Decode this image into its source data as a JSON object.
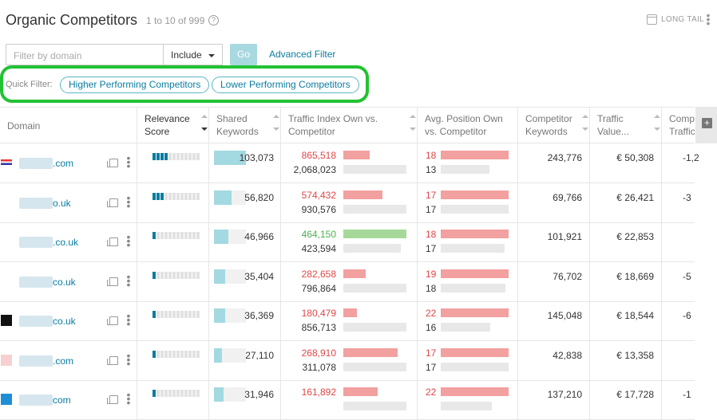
{
  "header": {
    "title": "Organic Competitors",
    "count": "1 to 10 of 999",
    "help": "?",
    "long_tail": "LONG TAIL",
    "menu": "⋮"
  },
  "filters": {
    "placeholder": "Filter by domain",
    "include": "Include",
    "go": "Go",
    "advanced": "Advanced Filter",
    "quick_label": "Quick Filter:",
    "quick_higher": "Higher Performing Competitors",
    "quick_lower": "Lower Performing Competitors"
  },
  "columns": {
    "domain": "Domain",
    "relevance_1": "Relevance",
    "relevance_2": "Score",
    "shared_1": "Shared",
    "shared_2": "Keywords",
    "traffic_1": "Traffic Index Own vs.",
    "traffic_2": "Competitor",
    "avgpos_1": "Avg. Position Own",
    "avgpos_2": "vs. Competitor",
    "compkw_1": "Competitor",
    "compkw_2": "Keywords",
    "value_1": "Traffic",
    "value_2": "Value...",
    "comp_1": "Comp",
    "comp_2": "Traffic"
  },
  "side_button": "+",
  "colors": {
    "accent": "#0a7ca0",
    "red": "#f2a0a0",
    "green": "#a6d999",
    "red_text": "#e04646",
    "green_text": "#4caf50",
    "highlight": "#22c232"
  },
  "rows": [
    {
      "domain_prefix": "",
      "domain_suffix": ".com",
      "rel": 4,
      "shared": "103,073",
      "shared_frac": 1.0,
      "t_own": "865,518",
      "t_own_frac": 0.42,
      "t_own_color": "red",
      "t_comp": "2,068,023",
      "t_comp_frac": 1.0,
      "p_own": "18",
      "p_own_frac": 1.0,
      "p_comp": "13",
      "p_comp_frac": 0.72,
      "comp_kw": "243,776",
      "value": "€ 50,308",
      "comp_extra": "-1,2"
    },
    {
      "domain_prefix": "",
      "domain_suffix": "o.uk",
      "rel": 3,
      "shared": "56,820",
      "shared_frac": 0.55,
      "t_own": "574,432",
      "t_own_frac": 0.62,
      "t_own_color": "red",
      "t_comp": "930,576",
      "t_comp_frac": 1.0,
      "p_own": "17",
      "p_own_frac": 1.0,
      "p_comp": "17",
      "p_comp_frac": 1.0,
      "comp_kw": "69,766",
      "value": "€ 26,421",
      "comp_extra": "-3"
    },
    {
      "domain_prefix": "",
      "domain_suffix": ".co.uk",
      "rel": 1,
      "shared": "46,966",
      "shared_frac": 0.46,
      "t_own": "464,150",
      "t_own_frac": 1.0,
      "t_own_color": "green",
      "t_comp": "423,594",
      "t_comp_frac": 0.91,
      "p_own": "18",
      "p_own_frac": 1.0,
      "p_comp": "17",
      "p_comp_frac": 0.94,
      "comp_kw": "101,921",
      "value": "€ 22,853",
      "comp_extra": ""
    },
    {
      "domain_prefix": "",
      "domain_suffix": "co.uk",
      "rel": 1,
      "shared": "35,404",
      "shared_frac": 0.34,
      "t_own": "282,658",
      "t_own_frac": 0.35,
      "t_own_color": "red",
      "t_comp": "796,864",
      "t_comp_frac": 1.0,
      "p_own": "19",
      "p_own_frac": 1.0,
      "p_comp": "18",
      "p_comp_frac": 0.95,
      "comp_kw": "76,702",
      "value": "€ 18,669",
      "comp_extra": "-5"
    },
    {
      "domain_prefix": "",
      "domain_suffix": "co.uk",
      "rel": 1,
      "shared": "36,369",
      "shared_frac": 0.35,
      "t_own": "180,479",
      "t_own_frac": 0.21,
      "t_own_color": "red",
      "t_comp": "856,713",
      "t_comp_frac": 1.0,
      "p_own": "22",
      "p_own_frac": 1.0,
      "p_comp": "16",
      "p_comp_frac": 0.73,
      "comp_kw": "145,048",
      "value": "€ 18,544",
      "comp_extra": "-6"
    },
    {
      "domain_prefix": "",
      "domain_suffix": ".com",
      "rel": 1,
      "shared": "27,110",
      "shared_frac": 0.26,
      "t_own": "268,910",
      "t_own_frac": 0.86,
      "t_own_color": "red",
      "t_comp": "311,078",
      "t_comp_frac": 1.0,
      "p_own": "17",
      "p_own_frac": 1.0,
      "p_comp": "17",
      "p_comp_frac": 1.0,
      "comp_kw": "42,838",
      "value": "€ 13,358",
      "comp_extra": ""
    },
    {
      "domain_prefix": "",
      "domain_suffix": "com",
      "rel": 1,
      "shared": "31,946",
      "shared_frac": 0.31,
      "t_own": "161,892",
      "t_own_frac": 0.55,
      "t_own_color": "red",
      "t_comp": "",
      "t_comp_frac": 1.0,
      "p_own": "22",
      "p_own_frac": 1.0,
      "p_comp": "",
      "p_comp_frac": 0.75,
      "comp_kw": "137,210",
      "value": "€ 17,728",
      "comp_extra": "-1"
    }
  ],
  "favicons": [
    "flag-icon",
    "glasses-icon",
    "bird-icon",
    "mountain-icon",
    "jd-logo-icon",
    "red-logo-icon",
    "m-logo-icon"
  ]
}
